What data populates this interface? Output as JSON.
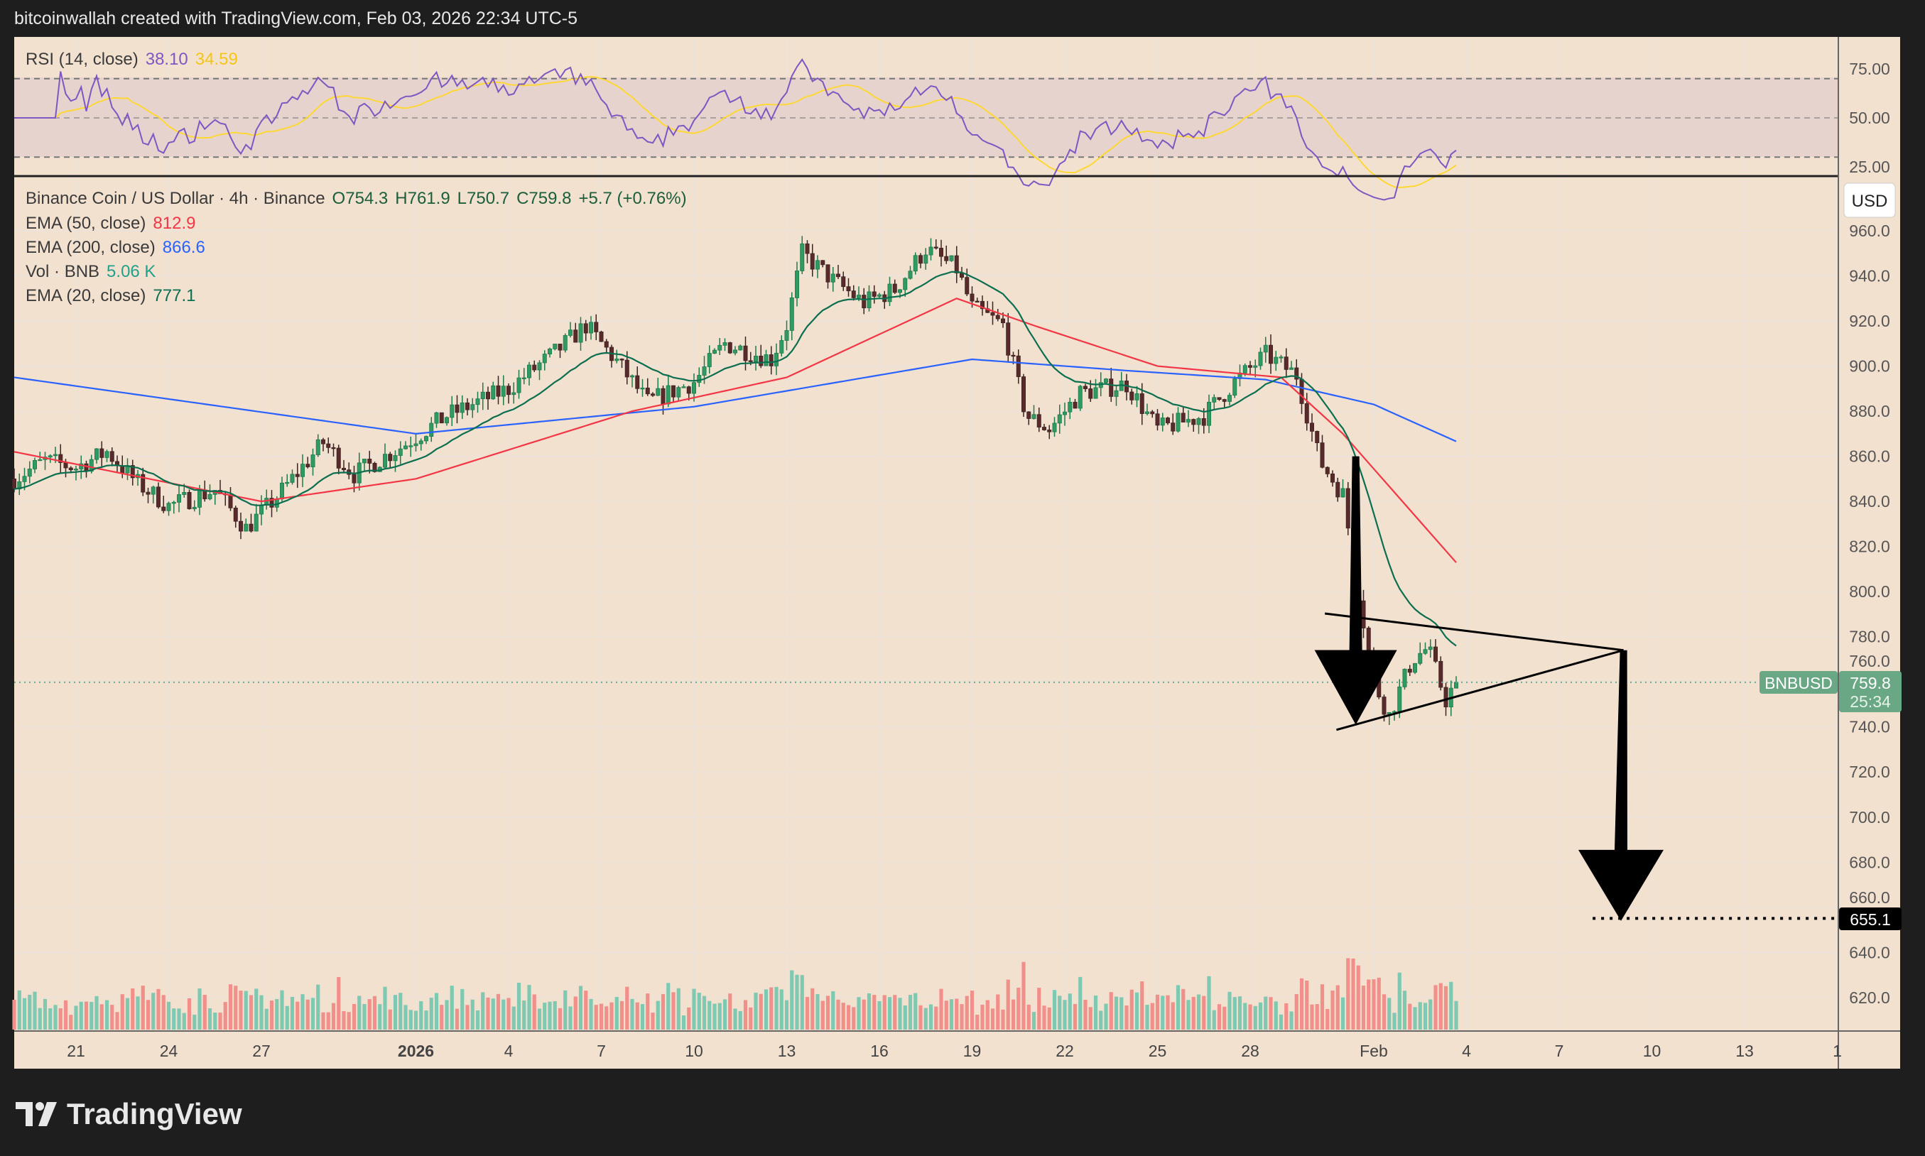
{
  "header": {
    "credit": "bitcoinwallah created with TradingView.com, Feb 03, 2026 22:34 UTC-5"
  },
  "footer": {
    "brand": "TradingView",
    "logo_icon": "tradingview-logo-icon"
  },
  "colors": {
    "background": "#f3e1d0",
    "up": "#1e7a4c",
    "down": "#3b2424",
    "vol_up": "#7fc8b1",
    "vol_down": "#f1908a",
    "ema50": "#f23645",
    "ema200": "#2962ff",
    "ema20": "#0b6e4f",
    "rsi": "#7e57c2",
    "rsi_ma": "#fdd835",
    "last_price": "#6aa784"
  },
  "rsi_legend": {
    "label": "RSI (14, close)",
    "value": "38.10",
    "ma_value": "34.59"
  },
  "legend": {
    "symbol": "Binance Coin / US Dollar · 4h · Binance",
    "open": "O754.3",
    "high": "H761.9",
    "low": "L750.7",
    "close": "C759.8",
    "change": "+5.7 (+0.76%)",
    "ema50_label": "EMA (50, close)",
    "ema50_value": "812.9",
    "ema200_label": "EMA (200, close)",
    "ema200_value": "866.6",
    "vol_label": "Vol · BNB",
    "vol_value": "5.06 K",
    "ema20_label": "EMA (20, close)",
    "ema20_value": "777.1"
  },
  "currency_button": "USD",
  "last_price": {
    "symbol": "BNBUSD",
    "price": "759.8",
    "countdown": "25:34"
  },
  "target_label": "655.1",
  "chart_data": {
    "type": "candlestick",
    "interval": "4h",
    "price_axis": {
      "ticks": [
        "960.0",
        "940.0",
        "920.0",
        "900.0",
        "880.0",
        "860.0",
        "840.0",
        "820.0",
        "800.0",
        "780.0",
        "760.0",
        "740.0",
        "720.0",
        "700.0",
        "680.0",
        "660.0",
        "640.0",
        "620.0"
      ],
      "range": [
        606,
        966
      ]
    },
    "rsi_axis": {
      "ticks": [
        "75.00",
        "50.00",
        "25.00"
      ],
      "bands": [
        30,
        70
      ],
      "mid": 50
    },
    "time_axis": {
      "ticks": [
        {
          "label": "21",
          "date": "2025-12-21"
        },
        {
          "label": "24",
          "date": "2025-12-24"
        },
        {
          "label": "27",
          "date": "2025-12-27"
        },
        {
          "label": "2026",
          "date": "2026-01-01",
          "bold": true
        },
        {
          "label": "4",
          "date": "2026-01-04"
        },
        {
          "label": "7",
          "date": "2026-01-07"
        },
        {
          "label": "10",
          "date": "2026-01-10"
        },
        {
          "label": "13",
          "date": "2026-01-13"
        },
        {
          "label": "16",
          "date": "2026-01-16"
        },
        {
          "label": "19",
          "date": "2026-01-19"
        },
        {
          "label": "22",
          "date": "2026-01-22"
        },
        {
          "label": "25",
          "date": "2026-01-25"
        },
        {
          "label": "28",
          "date": "2026-01-28"
        },
        {
          "label": "Feb",
          "date": "2026-02-01"
        },
        {
          "label": "4",
          "date": "2026-02-04"
        },
        {
          "label": "7",
          "date": "2026-02-07"
        },
        {
          "label": "10",
          "date": "2026-02-10"
        },
        {
          "label": "13",
          "date": "2026-02-13"
        },
        {
          "label": "1",
          "date": "2026-02-16"
        }
      ]
    },
    "close_path": [
      [
        "2025-12-19T00",
        850
      ],
      [
        "2025-12-20T00",
        858
      ],
      [
        "2025-12-21T00",
        855
      ],
      [
        "2025-12-22T00",
        862
      ],
      [
        "2025-12-23T00",
        848
      ],
      [
        "2025-12-24T00",
        838
      ],
      [
        "2025-12-25T12",
        845
      ],
      [
        "2025-12-26T12",
        828
      ],
      [
        "2025-12-27T12",
        842
      ],
      [
        "2025-12-29T00",
        866
      ],
      [
        "2025-12-30T00",
        852
      ],
      [
        "2025-12-31T12",
        864
      ],
      [
        "2026-01-02T00",
        878
      ],
      [
        "2026-01-04T00",
        890
      ],
      [
        "2026-01-05T12",
        906
      ],
      [
        "2026-01-06T12",
        918
      ],
      [
        "2026-01-07T12",
        902
      ],
      [
        "2026-01-08T12",
        884
      ],
      [
        "2026-01-10T00",
        893
      ],
      [
        "2026-01-11T00",
        910
      ],
      [
        "2026-01-12T12",
        903
      ],
      [
        "2026-01-13T00",
        918
      ],
      [
        "2026-01-13T12",
        950
      ],
      [
        "2026-01-14T12",
        938
      ],
      [
        "2026-01-15T12",
        928
      ],
      [
        "2026-01-16T12",
        934
      ],
      [
        "2026-01-17T12",
        952
      ],
      [
        "2026-01-18T12",
        943
      ],
      [
        "2026-01-19T00",
        926
      ],
      [
        "2026-01-20T00",
        918
      ],
      [
        "2026-01-20T18",
        878
      ],
      [
        "2026-01-21T12",
        872
      ],
      [
        "2026-01-22T12",
        888
      ],
      [
        "2026-01-24T00",
        892
      ],
      [
        "2026-01-25T00",
        872
      ],
      [
        "2026-01-26T12",
        878
      ],
      [
        "2026-01-27T12",
        893
      ],
      [
        "2026-01-28T12",
        905
      ],
      [
        "2026-01-29T12",
        896
      ],
      [
        "2026-01-30T06",
        858
      ],
      [
        "2026-01-31T00",
        843
      ],
      [
        "2026-01-31T12",
        800
      ],
      [
        "2026-02-01T00",
        760
      ],
      [
        "2026-02-01T12",
        745
      ],
      [
        "2026-02-02T06",
        770
      ],
      [
        "2026-02-02T18",
        775
      ],
      [
        "2026-02-03T08",
        752
      ],
      [
        "2026-02-03T16",
        759.8
      ]
    ],
    "ema200_path": [
      [
        "2025-12-19T00",
        895
      ],
      [
        "2026-01-01T00",
        870
      ],
      [
        "2026-01-10T00",
        882
      ],
      [
        "2026-01-19T00",
        903
      ],
      [
        "2026-01-24T00",
        898
      ],
      [
        "2026-01-28T12",
        894
      ],
      [
        "2026-02-01T00",
        883
      ],
      [
        "2026-02-03T16",
        866.6
      ]
    ],
    "ema50_path": [
      [
        "2025-12-19T00",
        862
      ],
      [
        "2025-12-27T00",
        840
      ],
      [
        "2026-01-01T00",
        850
      ],
      [
        "2026-01-08T00",
        880
      ],
      [
        "2026-01-13T00",
        895
      ],
      [
        "2026-01-18T12",
        930
      ],
      [
        "2026-01-21T00",
        918
      ],
      [
        "2026-01-25T00",
        900
      ],
      [
        "2026-01-29T00",
        895
      ],
      [
        "2026-01-31T00",
        870
      ],
      [
        "2026-02-03T16",
        812.9
      ]
    ],
    "drawings": {
      "triangle_upper": [
        [
          "2026-01-30T10",
          790.3
        ],
        [
          "2026-02-09T02",
          774
        ]
      ],
      "triangle_lower": [
        [
          "2026-01-30T19",
          738.7
        ],
        [
          "2026-02-09T02",
          774
        ]
      ],
      "arrow_1": [
        [
          "2026-01-31T10",
          860
        ],
        [
          "2026-01-31T10",
          741
        ]
      ],
      "arrow_2": [
        [
          "2026-02-09T02",
          774
        ],
        [
          "2026-02-09T00",
          654
        ]
      ],
      "target_line": {
        "from": "2026-02-08T02",
        "price": 655.1
      }
    }
  }
}
